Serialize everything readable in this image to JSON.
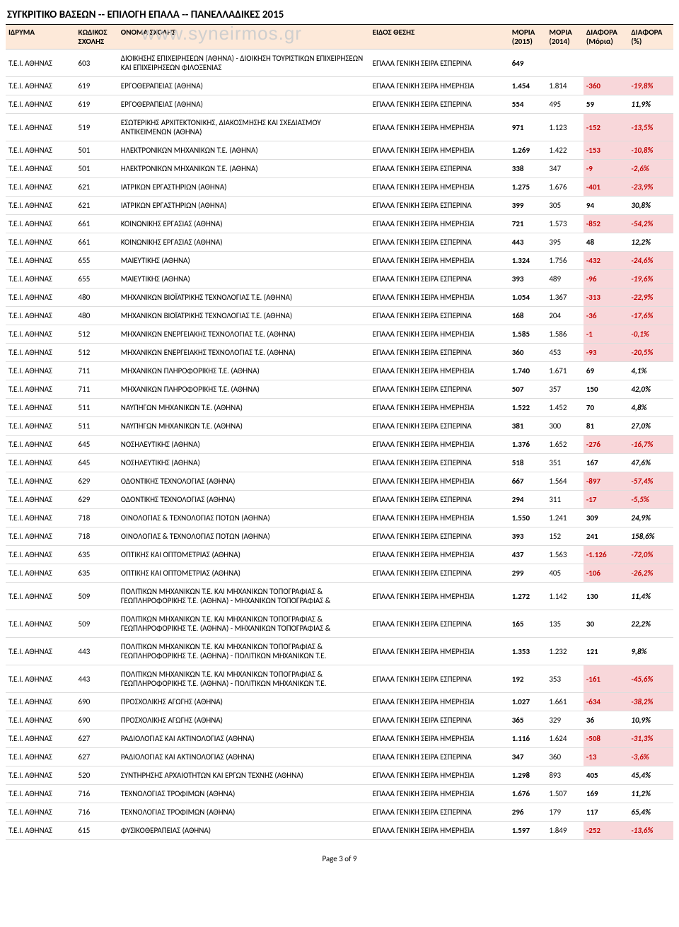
{
  "title": "ΣΥΓΚΡΙΤΙΚΟ ΒΑΣΕΩΝ -- ΕΠΙΛΟΓΗ ΕΠΑΛΑ -- ΠΑΝΕΛΛΑΔΙΚΕΣ 2015",
  "watermark": "www.syneirmos.gr",
  "footer": "Page 3 of 9",
  "columns": [
    "ΙΔΡΥΜΑ",
    "ΚΩΔΙΚΟΣ ΣΧΟΛΗΣ",
    "ΟΝΟΜΑ ΣΧΟΛΗΣ",
    "ΕΙΔΟΣ ΘΕΣΗΣ",
    "ΜΟΡΙΑ (2015)",
    "ΜΟΡΙΑ (2014)",
    "ΔΙΑΦΟΡΑ (Μόρια)",
    "ΔΙΑΦΟΡΑ (%)"
  ],
  "colors": {
    "header_bg": "#fde9d9",
    "negative_text": "#c00000",
    "highlight_bg": "#f8d7da",
    "border": "#dddddd"
  },
  "rows": [
    {
      "inst": "Τ.Ε.Ι. ΑΘΗΝΑΣ",
      "code": "603",
      "name": "ΔΙΟΙΚΗΣΗΣ ΕΠΙΧΕΙΡΗΣΕΩΝ (ΑΘΗΝΑ) - ΔΙΟΙΚΗΣΗ ΤΟΥΡΙΣΤΙΚΩΝ ΕΠΙΧΕΙΡΗΣΕΩΝ ΚΑΙ ΕΠΙΧΕΙΡΗΣΕΩΝ ΦΙΛΟΞΕΝΙΑΣ",
      "type": "ΕΠΑΛΑ ΓΕΝΙΚΗ ΣΕΙΡΑ ΕΣΠΕΡΙΝΑ",
      "m15": "649",
      "m14": "",
      "diffm": "",
      "diffp": "",
      "hl": false
    },
    {
      "inst": "Τ.Ε.Ι. ΑΘΗΝΑΣ",
      "code": "619",
      "name": "ΕΡΓΟΘΕΡΑΠΕΙΑΣ (ΑΘΗΝΑ)",
      "type": "ΕΠΑΛΑ ΓΕΝΙΚΗ ΣΕΙΡΑ ΗΜΕΡΗΣΙΑ",
      "m15": "1.454",
      "m14": "1.814",
      "diffm": "-360",
      "diffp": "-19,8%",
      "hl": true
    },
    {
      "inst": "Τ.Ε.Ι. ΑΘΗΝΑΣ",
      "code": "619",
      "name": "ΕΡΓΟΘΕΡΑΠΕΙΑΣ (ΑΘΗΝΑ)",
      "type": "ΕΠΑΛΑ ΓΕΝΙΚΗ ΣΕΙΡΑ ΕΣΠΕΡΙΝΑ",
      "m15": "554",
      "m14": "495",
      "diffm": "59",
      "diffp": "11,9%",
      "hl": false
    },
    {
      "inst": "Τ.Ε.Ι. ΑΘΗΝΑΣ",
      "code": "519",
      "name": "ΕΣΩΤΕΡΙΚΗΣ ΑΡΧΙΤΕΚΤΟΝΙΚΗΣ, ΔΙΑΚΟΣΜΗΣΗΣ ΚΑΙ ΣΧΕΔΙΑΣΜΟΥ ΑΝΤΙΚΕΙΜΕΝΩΝ (ΑΘΗΝΑ)",
      "type": "ΕΠΑΛΑ ΓΕΝΙΚΗ ΣΕΙΡΑ ΗΜΕΡΗΣΙΑ",
      "m15": "971",
      "m14": "1.123",
      "diffm": "-152",
      "diffp": "-13,5%",
      "hl": true
    },
    {
      "inst": "Τ.Ε.Ι. ΑΘΗΝΑΣ",
      "code": "501",
      "name": "ΗΛΕΚΤΡΟΝΙΚΩΝ ΜΗΧΑΝΙΚΩΝ Τ.Ε. (ΑΘΗΝΑ)",
      "type": "ΕΠΑΛΑ ΓΕΝΙΚΗ ΣΕΙΡΑ ΗΜΕΡΗΣΙΑ",
      "m15": "1.269",
      "m14": "1.422",
      "diffm": "-153",
      "diffp": "-10,8%",
      "hl": true
    },
    {
      "inst": "Τ.Ε.Ι. ΑΘΗΝΑΣ",
      "code": "501",
      "name": "ΗΛΕΚΤΡΟΝΙΚΩΝ ΜΗΧΑΝΙΚΩΝ Τ.Ε. (ΑΘΗΝΑ)",
      "type": "ΕΠΑΛΑ ΓΕΝΙΚΗ ΣΕΙΡΑ ΕΣΠΕΡΙΝΑ",
      "m15": "338",
      "m14": "347",
      "diffm": "-9",
      "diffp": "-2,6%",
      "hl": true
    },
    {
      "inst": "Τ.Ε.Ι. ΑΘΗΝΑΣ",
      "code": "621",
      "name": "ΙΑΤΡΙΚΩΝ ΕΡΓΑΣΤΗΡΙΩΝ (ΑΘΗΝΑ)",
      "type": "ΕΠΑΛΑ ΓΕΝΙΚΗ ΣΕΙΡΑ ΗΜΕΡΗΣΙΑ",
      "m15": "1.275",
      "m14": "1.676",
      "diffm": "-401",
      "diffp": "-23,9%",
      "hl": true
    },
    {
      "inst": "Τ.Ε.Ι. ΑΘΗΝΑΣ",
      "code": "621",
      "name": "ΙΑΤΡΙΚΩΝ ΕΡΓΑΣΤΗΡΙΩΝ (ΑΘΗΝΑ)",
      "type": "ΕΠΑΛΑ ΓΕΝΙΚΗ ΣΕΙΡΑ ΕΣΠΕΡΙΝΑ",
      "m15": "399",
      "m14": "305",
      "diffm": "94",
      "diffp": "30,8%",
      "hl": false
    },
    {
      "inst": "Τ.Ε.Ι. ΑΘΗΝΑΣ",
      "code": "661",
      "name": "ΚΟΙΝΩΝΙΚΗΣ ΕΡΓΑΣΙΑΣ (ΑΘΗΝΑ)",
      "type": "ΕΠΑΛΑ ΓΕΝΙΚΗ ΣΕΙΡΑ ΗΜΕΡΗΣΙΑ",
      "m15": "721",
      "m14": "1.573",
      "diffm": "-852",
      "diffp": "-54,2%",
      "hl": true
    },
    {
      "inst": "Τ.Ε.Ι. ΑΘΗΝΑΣ",
      "code": "661",
      "name": "ΚΟΙΝΩΝΙΚΗΣ ΕΡΓΑΣΙΑΣ (ΑΘΗΝΑ)",
      "type": "ΕΠΑΛΑ ΓΕΝΙΚΗ ΣΕΙΡΑ ΕΣΠΕΡΙΝΑ",
      "m15": "443",
      "m14": "395",
      "diffm": "48",
      "diffp": "12,2%",
      "hl": false
    },
    {
      "inst": "Τ.Ε.Ι. ΑΘΗΝΑΣ",
      "code": "655",
      "name": "ΜΑΙΕΥΤΙΚΗΣ (ΑΘΗΝΑ)",
      "type": "ΕΠΑΛΑ ΓΕΝΙΚΗ ΣΕΙΡΑ ΗΜΕΡΗΣΙΑ",
      "m15": "1.324",
      "m14": "1.756",
      "diffm": "-432",
      "diffp": "-24,6%",
      "hl": true
    },
    {
      "inst": "Τ.Ε.Ι. ΑΘΗΝΑΣ",
      "code": "655",
      "name": "ΜΑΙΕΥΤΙΚΗΣ (ΑΘΗΝΑ)",
      "type": "ΕΠΑΛΑ ΓΕΝΙΚΗ ΣΕΙΡΑ ΕΣΠΕΡΙΝΑ",
      "m15": "393",
      "m14": "489",
      "diffm": "-96",
      "diffp": "-19,6%",
      "hl": true
    },
    {
      "inst": "Τ.Ε.Ι. ΑΘΗΝΑΣ",
      "code": "480",
      "name": "ΜΗΧΑΝΙΚΩΝ ΒΙΟΪΑΤΡΙΚΗΣ ΤΕΧΝΟΛΟΓΙΑΣ Τ.Ε. (ΑΘΗΝΑ)",
      "type": "ΕΠΑΛΑ ΓΕΝΙΚΗ ΣΕΙΡΑ ΗΜΕΡΗΣΙΑ",
      "m15": "1.054",
      "m14": "1.367",
      "diffm": "-313",
      "diffp": "-22,9%",
      "hl": true
    },
    {
      "inst": "Τ.Ε.Ι. ΑΘΗΝΑΣ",
      "code": "480",
      "name": "ΜΗΧΑΝΙΚΩΝ ΒΙΟΪΑΤΡΙΚΗΣ ΤΕΧΝΟΛΟΓΙΑΣ Τ.Ε. (ΑΘΗΝΑ)",
      "type": "ΕΠΑΛΑ ΓΕΝΙΚΗ ΣΕΙΡΑ ΕΣΠΕΡΙΝΑ",
      "m15": "168",
      "m14": "204",
      "diffm": "-36",
      "diffp": "-17,6%",
      "hl": true
    },
    {
      "inst": "Τ.Ε.Ι. ΑΘΗΝΑΣ",
      "code": "512",
      "name": "ΜΗΧΑΝΙΚΩΝ ΕΝΕΡΓΕΙΑΚΗΣ ΤΕΧΝΟΛΟΓΙΑΣ Τ.Ε. (ΑΘΗΝΑ)",
      "type": "ΕΠΑΛΑ ΓΕΝΙΚΗ ΣΕΙΡΑ ΗΜΕΡΗΣΙΑ",
      "m15": "1.585",
      "m14": "1.586",
      "diffm": "-1",
      "diffp": "-0,1%",
      "hl": true
    },
    {
      "inst": "Τ.Ε.Ι. ΑΘΗΝΑΣ",
      "code": "512",
      "name": "ΜΗΧΑΝΙΚΩΝ ΕΝΕΡΓΕΙΑΚΗΣ ΤΕΧΝΟΛΟΓΙΑΣ Τ.Ε. (ΑΘΗΝΑ)",
      "type": "ΕΠΑΛΑ ΓΕΝΙΚΗ ΣΕΙΡΑ ΕΣΠΕΡΙΝΑ",
      "m15": "360",
      "m14": "453",
      "diffm": "-93",
      "diffp": "-20,5%",
      "hl": true
    },
    {
      "inst": "Τ.Ε.Ι. ΑΘΗΝΑΣ",
      "code": "711",
      "name": "ΜΗΧΑΝΙΚΩΝ ΠΛΗΡΟΦΟΡΙΚΗΣ Τ.Ε. (ΑΘΗΝΑ)",
      "type": "ΕΠΑΛΑ ΓΕΝΙΚΗ ΣΕΙΡΑ ΗΜΕΡΗΣΙΑ",
      "m15": "1.740",
      "m14": "1.671",
      "diffm": "69",
      "diffp": "4,1%",
      "hl": false
    },
    {
      "inst": "Τ.Ε.Ι. ΑΘΗΝΑΣ",
      "code": "711",
      "name": "ΜΗΧΑΝΙΚΩΝ ΠΛΗΡΟΦΟΡΙΚΗΣ Τ.Ε. (ΑΘΗΝΑ)",
      "type": "ΕΠΑΛΑ ΓΕΝΙΚΗ ΣΕΙΡΑ ΕΣΠΕΡΙΝΑ",
      "m15": "507",
      "m14": "357",
      "diffm": "150",
      "diffp": "42,0%",
      "hl": false
    },
    {
      "inst": "Τ.Ε.Ι. ΑΘΗΝΑΣ",
      "code": "511",
      "name": "ΝΑΥΠΗΓΩΝ ΜΗΧΑΝΙΚΩΝ Τ.Ε. (ΑΘΗΝΑ)",
      "type": "ΕΠΑΛΑ ΓΕΝΙΚΗ ΣΕΙΡΑ ΗΜΕΡΗΣΙΑ",
      "m15": "1.522",
      "m14": "1.452",
      "diffm": "70",
      "diffp": "4,8%",
      "hl": false
    },
    {
      "inst": "Τ.Ε.Ι. ΑΘΗΝΑΣ",
      "code": "511",
      "name": "ΝΑΥΠΗΓΩΝ ΜΗΧΑΝΙΚΩΝ Τ.Ε. (ΑΘΗΝΑ)",
      "type": "ΕΠΑΛΑ ΓΕΝΙΚΗ ΣΕΙΡΑ ΕΣΠΕΡΙΝΑ",
      "m15": "381",
      "m14": "300",
      "diffm": "81",
      "diffp": "27,0%",
      "hl": false
    },
    {
      "inst": "Τ.Ε.Ι. ΑΘΗΝΑΣ",
      "code": "645",
      "name": "ΝΟΣΗΛΕΥΤΙΚΗΣ (ΑΘΗΝΑ)",
      "type": "ΕΠΑΛΑ ΓΕΝΙΚΗ ΣΕΙΡΑ ΗΜΕΡΗΣΙΑ",
      "m15": "1.376",
      "m14": "1.652",
      "diffm": "-276",
      "diffp": "-16,7%",
      "hl": true
    },
    {
      "inst": "Τ.Ε.Ι. ΑΘΗΝΑΣ",
      "code": "645",
      "name": "ΝΟΣΗΛΕΥΤΙΚΗΣ (ΑΘΗΝΑ)",
      "type": "ΕΠΑΛΑ ΓΕΝΙΚΗ ΣΕΙΡΑ ΕΣΠΕΡΙΝΑ",
      "m15": "518",
      "m14": "351",
      "diffm": "167",
      "diffp": "47,6%",
      "hl": false
    },
    {
      "inst": "Τ.Ε.Ι. ΑΘΗΝΑΣ",
      "code": "629",
      "name": "ΟΔΟΝΤΙΚΗΣ ΤΕΧΝΟΛΟΓΙΑΣ (ΑΘΗΝΑ)",
      "type": "ΕΠΑΛΑ ΓΕΝΙΚΗ ΣΕΙΡΑ ΗΜΕΡΗΣΙΑ",
      "m15": "667",
      "m14": "1.564",
      "diffm": "-897",
      "diffp": "-57,4%",
      "hl": true
    },
    {
      "inst": "Τ.Ε.Ι. ΑΘΗΝΑΣ",
      "code": "629",
      "name": "ΟΔΟΝΤΙΚΗΣ ΤΕΧΝΟΛΟΓΙΑΣ (ΑΘΗΝΑ)",
      "type": "ΕΠΑΛΑ ΓΕΝΙΚΗ ΣΕΙΡΑ ΕΣΠΕΡΙΝΑ",
      "m15": "294",
      "m14": "311",
      "diffm": "-17",
      "diffp": "-5,5%",
      "hl": true
    },
    {
      "inst": "Τ.Ε.Ι. ΑΘΗΝΑΣ",
      "code": "718",
      "name": "ΟΙΝΟΛΟΓΙΑΣ & ΤΕΧΝΟΛΟΓΙΑΣ ΠΟΤΩΝ (ΑΘΗΝΑ)",
      "type": "ΕΠΑΛΑ ΓΕΝΙΚΗ ΣΕΙΡΑ ΗΜΕΡΗΣΙΑ",
      "m15": "1.550",
      "m14": "1.241",
      "diffm": "309",
      "diffp": "24,9%",
      "hl": false
    },
    {
      "inst": "Τ.Ε.Ι. ΑΘΗΝΑΣ",
      "code": "718",
      "name": "ΟΙΝΟΛΟΓΙΑΣ & ΤΕΧΝΟΛΟΓΙΑΣ ΠΟΤΩΝ (ΑΘΗΝΑ)",
      "type": "ΕΠΑΛΑ ΓΕΝΙΚΗ ΣΕΙΡΑ ΕΣΠΕΡΙΝΑ",
      "m15": "393",
      "m14": "152",
      "diffm": "241",
      "diffp": "158,6%",
      "hl": false
    },
    {
      "inst": "Τ.Ε.Ι. ΑΘΗΝΑΣ",
      "code": "635",
      "name": "ΟΠΤΙΚΗΣ ΚΑΙ ΟΠΤΟΜΕΤΡΙΑΣ (ΑΘΗΝΑ)",
      "type": "ΕΠΑΛΑ ΓΕΝΙΚΗ ΣΕΙΡΑ ΗΜΕΡΗΣΙΑ",
      "m15": "437",
      "m14": "1.563",
      "diffm": "-1.126",
      "diffp": "-72,0%",
      "hl": true
    },
    {
      "inst": "Τ.Ε.Ι. ΑΘΗΝΑΣ",
      "code": "635",
      "name": "ΟΠΤΙΚΗΣ ΚΑΙ ΟΠΤΟΜΕΤΡΙΑΣ (ΑΘΗΝΑ)",
      "type": "ΕΠΑΛΑ ΓΕΝΙΚΗ ΣΕΙΡΑ ΕΣΠΕΡΙΝΑ",
      "m15": "299",
      "m14": "405",
      "diffm": "-106",
      "diffp": "-26,2%",
      "hl": true
    },
    {
      "inst": "Τ.Ε.Ι. ΑΘΗΝΑΣ",
      "code": "509",
      "name": "ΠΟΛΙΤΙΚΩΝ ΜΗΧΑΝΙΚΩΝ Τ.Ε. ΚΑΙ ΜΗΧΑΝΙΚΩΝ ΤΟΠΟΓΡΑΦΙΑΣ & ΓΕΩΠΛΗΡΟΦΟΡΙΚΗΣ Τ.Ε. (ΑΘΗΝΑ) - ΜΗΧΑΝΙΚΩΝ ΤΟΠΟΓΡΑΦΙΑΣ &",
      "type": "ΕΠΑΛΑ ΓΕΝΙΚΗ ΣΕΙΡΑ ΗΜΕΡΗΣΙΑ",
      "m15": "1.272",
      "m14": "1.142",
      "diffm": "130",
      "diffp": "11,4%",
      "hl": false
    },
    {
      "inst": "Τ.Ε.Ι. ΑΘΗΝΑΣ",
      "code": "509",
      "name": "ΠΟΛΙΤΙΚΩΝ ΜΗΧΑΝΙΚΩΝ Τ.Ε. ΚΑΙ ΜΗΧΑΝΙΚΩΝ ΤΟΠΟΓΡΑΦΙΑΣ & ΓΕΩΠΛΗΡΟΦΟΡΙΚΗΣ Τ.Ε. (ΑΘΗΝΑ) - ΜΗΧΑΝΙΚΩΝ ΤΟΠΟΓΡΑΦΙΑΣ &",
      "type": "ΕΠΑΛΑ ΓΕΝΙΚΗ ΣΕΙΡΑ ΕΣΠΕΡΙΝΑ",
      "m15": "165",
      "m14": "135",
      "diffm": "30",
      "diffp": "22,2%",
      "hl": false
    },
    {
      "inst": "Τ.Ε.Ι. ΑΘΗΝΑΣ",
      "code": "443",
      "name": "ΠΟΛΙΤΙΚΩΝ ΜΗΧΑΝΙΚΩΝ Τ.Ε. ΚΑΙ ΜΗΧΑΝΙΚΩΝ ΤΟΠΟΓΡΑΦΙΑΣ & ΓΕΩΠΛΗΡΟΦΟΡΙΚΗΣ Τ.Ε. (ΑΘΗΝΑ) - ΠΟΛΙΤΙΚΩΝ ΜΗΧΑΝΙΚΩΝ Τ.Ε.",
      "type": "ΕΠΑΛΑ ΓΕΝΙΚΗ ΣΕΙΡΑ ΗΜΕΡΗΣΙΑ",
      "m15": "1.353",
      "m14": "1.232",
      "diffm": "121",
      "diffp": "9,8%",
      "hl": false
    },
    {
      "inst": "Τ.Ε.Ι. ΑΘΗΝΑΣ",
      "code": "443",
      "name": "ΠΟΛΙΤΙΚΩΝ ΜΗΧΑΝΙΚΩΝ Τ.Ε. ΚΑΙ ΜΗΧΑΝΙΚΩΝ ΤΟΠΟΓΡΑΦΙΑΣ & ΓΕΩΠΛΗΡΟΦΟΡΙΚΗΣ Τ.Ε. (ΑΘΗΝΑ) - ΠΟΛΙΤΙΚΩΝ ΜΗΧΑΝΙΚΩΝ Τ.Ε.",
      "type": "ΕΠΑΛΑ ΓΕΝΙΚΗ ΣΕΙΡΑ ΕΣΠΕΡΙΝΑ",
      "m15": "192",
      "m14": "353",
      "diffm": "-161",
      "diffp": "-45,6%",
      "hl": true
    },
    {
      "inst": "Τ.Ε.Ι. ΑΘΗΝΑΣ",
      "code": "690",
      "name": "ΠΡΟΣΧΟΛΙΚΗΣ ΑΓΩΓΗΣ (ΑΘΗΝΑ)",
      "type": "ΕΠΑΛΑ ΓΕΝΙΚΗ ΣΕΙΡΑ ΗΜΕΡΗΣΙΑ",
      "m15": "1.027",
      "m14": "1.661",
      "diffm": "-634",
      "diffp": "-38,2%",
      "hl": true
    },
    {
      "inst": "Τ.Ε.Ι. ΑΘΗΝΑΣ",
      "code": "690",
      "name": "ΠΡΟΣΧΟΛΙΚΗΣ ΑΓΩΓΗΣ (ΑΘΗΝΑ)",
      "type": "ΕΠΑΛΑ ΓΕΝΙΚΗ ΣΕΙΡΑ ΕΣΠΕΡΙΝΑ",
      "m15": "365",
      "m14": "329",
      "diffm": "36",
      "diffp": "10,9%",
      "hl": false
    },
    {
      "inst": "Τ.Ε.Ι. ΑΘΗΝΑΣ",
      "code": "627",
      "name": "ΡΑΔΙΟΛΟΓΙΑΣ ΚΑΙ ΑΚΤΙΝΟΛΟΓΙΑΣ (ΑΘΗΝΑ)",
      "type": "ΕΠΑΛΑ ΓΕΝΙΚΗ ΣΕΙΡΑ ΗΜΕΡΗΣΙΑ",
      "m15": "1.116",
      "m14": "1.624",
      "diffm": "-508",
      "diffp": "-31,3%",
      "hl": true
    },
    {
      "inst": "Τ.Ε.Ι. ΑΘΗΝΑΣ",
      "code": "627",
      "name": "ΡΑΔΙΟΛΟΓΙΑΣ ΚΑΙ ΑΚΤΙΝΟΛΟΓΙΑΣ (ΑΘΗΝΑ)",
      "type": "ΕΠΑΛΑ ΓΕΝΙΚΗ ΣΕΙΡΑ ΕΣΠΕΡΙΝΑ",
      "m15": "347",
      "m14": "360",
      "diffm": "-13",
      "diffp": "-3,6%",
      "hl": true
    },
    {
      "inst": "Τ.Ε.Ι. ΑΘΗΝΑΣ",
      "code": "520",
      "name": "ΣΥΝΤΗΡΗΣΗΣ ΑΡΧΑΙΟΤΗΤΩΝ ΚΑΙ ΕΡΓΩΝ ΤΕΧΝΗΣ (ΑΘΗΝΑ)",
      "type": "ΕΠΑΛΑ ΓΕΝΙΚΗ ΣΕΙΡΑ ΗΜΕΡΗΣΙΑ",
      "m15": "1.298",
      "m14": "893",
      "diffm": "405",
      "diffp": "45,4%",
      "hl": false
    },
    {
      "inst": "Τ.Ε.Ι. ΑΘΗΝΑΣ",
      "code": "716",
      "name": "ΤΕΧΝΟΛΟΓΙΑΣ ΤΡΟΦΙΜΩΝ (ΑΘΗΝΑ)",
      "type": "ΕΠΑΛΑ ΓΕΝΙΚΗ ΣΕΙΡΑ ΗΜΕΡΗΣΙΑ",
      "m15": "1.676",
      "m14": "1.507",
      "diffm": "169",
      "diffp": "11,2%",
      "hl": false
    },
    {
      "inst": "Τ.Ε.Ι. ΑΘΗΝΑΣ",
      "code": "716",
      "name": "ΤΕΧΝΟΛΟΓΙΑΣ ΤΡΟΦΙΜΩΝ (ΑΘΗΝΑ)",
      "type": "ΕΠΑΛΑ ΓΕΝΙΚΗ ΣΕΙΡΑ ΕΣΠΕΡΙΝΑ",
      "m15": "296",
      "m14": "179",
      "diffm": "117",
      "diffp": "65,4%",
      "hl": false
    },
    {
      "inst": "Τ.Ε.Ι. ΑΘΗΝΑΣ",
      "code": "615",
      "name": "ΦΥΣΙΚΟΘΕΡΑΠΕΙΑΣ (ΑΘΗΝΑ)",
      "type": "ΕΠΑΛΑ ΓΕΝΙΚΗ ΣΕΙΡΑ ΗΜΕΡΗΣΙΑ",
      "m15": "1.597",
      "m14": "1.849",
      "diffm": "-252",
      "diffp": "-13,6%",
      "hl": true
    }
  ]
}
